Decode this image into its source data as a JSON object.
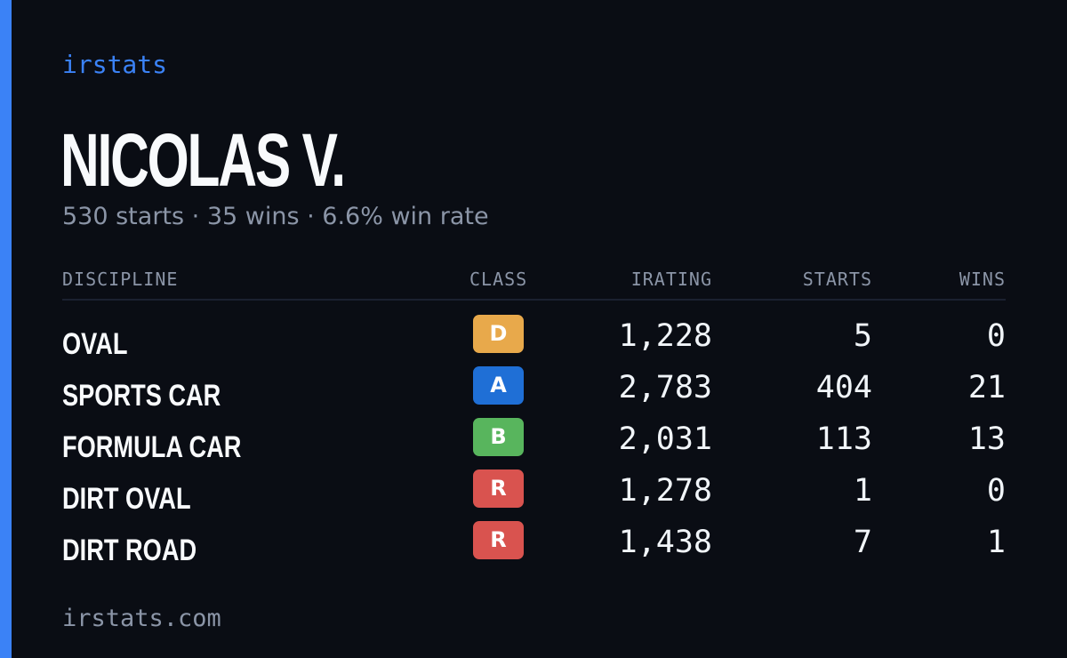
{
  "brand": "irstats",
  "player_name": "NICOLAS V.",
  "summary": "530 starts · 35 wins · 6.6% win rate",
  "table": {
    "headers": {
      "discipline": "DISCIPLINE",
      "class": "CLASS",
      "irating": "IRATING",
      "starts": "STARTS",
      "wins": "WINS"
    },
    "rows": [
      {
        "discipline": "OVAL",
        "class": "D",
        "class_color": "#e8a94b",
        "irating": "1,228",
        "starts": "5",
        "wins": "0"
      },
      {
        "discipline": "SPORTS CAR",
        "class": "A",
        "class_color": "#1f6fd6",
        "irating": "2,783",
        "starts": "404",
        "wins": "21"
      },
      {
        "discipline": "FORMULA CAR",
        "class": "B",
        "class_color": "#58b55d",
        "irating": "2,031",
        "starts": "113",
        "wins": "13"
      },
      {
        "discipline": "DIRT OVAL",
        "class": "R",
        "class_color": "#d9534f",
        "irating": "1,278",
        "starts": "1",
        "wins": "0"
      },
      {
        "discipline": "DIRT ROAD",
        "class": "R",
        "class_color": "#d9534f",
        "irating": "1,438",
        "starts": "7",
        "wins": "1"
      }
    ]
  },
  "footer": "irstats.com",
  "colors": {
    "accent": "#3b82f6",
    "background": "#0a0d14",
    "muted_text": "#8b95a7"
  }
}
